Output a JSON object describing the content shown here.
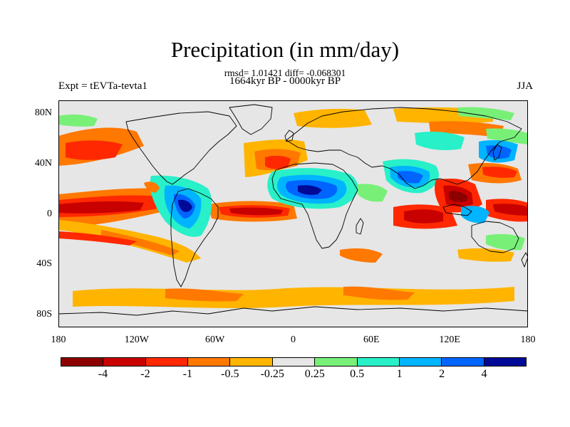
{
  "title": "Precipitation (in mm/day)",
  "stats_line": "rmsd= 1.01421 diff= -0.068301",
  "period_line": "1664kyr BP - 0000kyr BP",
  "left_label": "Expt = tEVTa-tevta1",
  "right_label": "JJA",
  "map": {
    "lon_range": [
      -180,
      180
    ],
    "lat_range": [
      -90,
      90
    ],
    "projection": "cylindrical-equidistant",
    "y_ticks": [
      {
        "label": "80N",
        "lat": 80
      },
      {
        "label": "40N",
        "lat": 40
      },
      {
        "label": "0",
        "lat": 0
      },
      {
        "label": "40S",
        "lat": -40
      },
      {
        "label": "80S",
        "lat": -80
      }
    ],
    "x_ticks": [
      {
        "label": "180",
        "lon": -180
      },
      {
        "label": "120W",
        "lon": -120
      },
      {
        "label": "60W",
        "lon": -60
      },
      {
        "label": "0",
        "lon": 0
      },
      {
        "label": "60E",
        "lon": 60
      },
      {
        "label": "120E",
        "lon": 120
      },
      {
        "label": "180",
        "lon": 180
      }
    ],
    "background_color": "#e6e6e6"
  },
  "colorbar": {
    "colors": [
      "#8c0000",
      "#c80000",
      "#ff2800",
      "#ff7800",
      "#ffb400",
      "#e6e6e6",
      "#78f078",
      "#28f0c8",
      "#00b4ff",
      "#0064ff",
      "#000a96"
    ],
    "labels": [
      "-4",
      "-2",
      "-1",
      "-0.5",
      "-0.25",
      "0.25",
      "0.5",
      "1",
      "2",
      "4"
    ]
  }
}
